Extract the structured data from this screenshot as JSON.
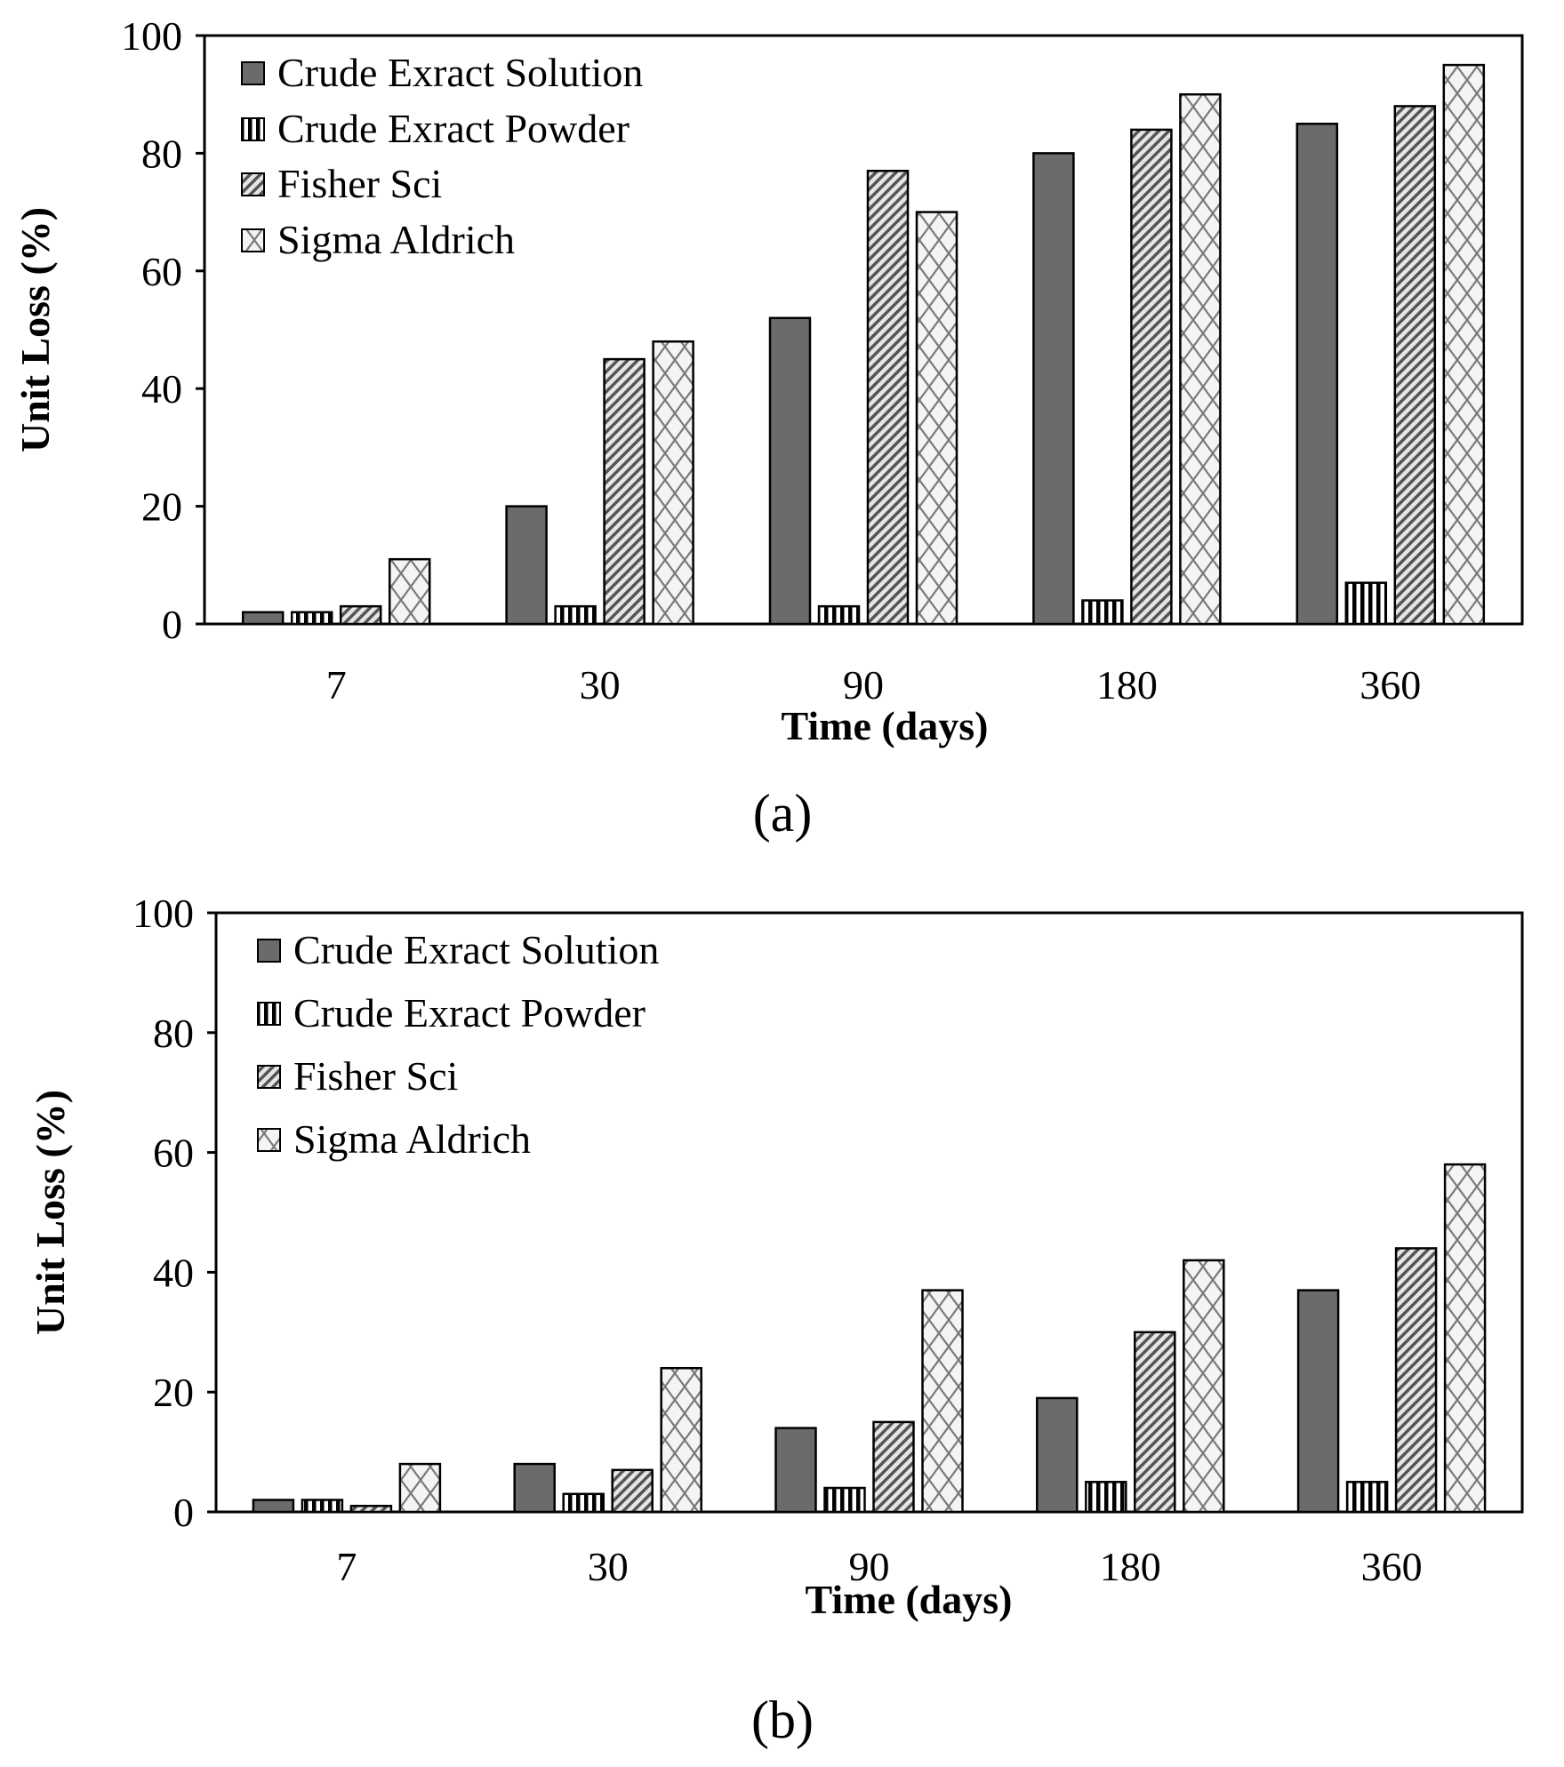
{
  "chart_data": [
    {
      "type": "bar",
      "panel_label": "(a)",
      "categories": [
        "7",
        "30",
        "90",
        "180",
        "360"
      ],
      "series": [
        {
          "name": "Crude Exract Solution",
          "values": [
            2,
            20,
            52,
            80,
            85
          ]
        },
        {
          "name": "Crude Exract Powder",
          "values": [
            2,
            3,
            3,
            4,
            7
          ]
        },
        {
          "name": "Fisher Sci",
          "values": [
            3,
            45,
            77,
            84,
            88
          ]
        },
        {
          "name": "Sigma Aldrich",
          "values": [
            11,
            48,
            70,
            90,
            95
          ]
        }
      ],
      "xlabel": "Time (days)",
      "ylabel": "Unit Loss (%)",
      "ylim": [
        0,
        100
      ],
      "yticks": [
        "0",
        "20",
        "40",
        "60",
        "80",
        "100"
      ],
      "legend_position": "top-left"
    },
    {
      "type": "bar",
      "panel_label": "(b)",
      "categories": [
        "7",
        "30",
        "90",
        "180",
        "360"
      ],
      "series": [
        {
          "name": "Crude Exract Solution",
          "values": [
            2,
            8,
            14,
            19,
            37
          ]
        },
        {
          "name": "Crude Exract Powder",
          "values": [
            2,
            3,
            4,
            5,
            5
          ]
        },
        {
          "name": "Fisher Sci",
          "values": [
            1,
            7,
            15,
            30,
            44
          ]
        },
        {
          "name": "Sigma Aldrich",
          "values": [
            8,
            24,
            37,
            42,
            58
          ]
        }
      ],
      "xlabel": "Time (days)",
      "ylabel": "Unit Loss (%)",
      "ylim": [
        0,
        100
      ],
      "yticks": [
        "0",
        "20",
        "40",
        "60",
        "80",
        "100"
      ],
      "legend_position": "top-left"
    }
  ],
  "series_styles": [
    {
      "pattern": "solid-gray",
      "color": "#6b6b6b"
    },
    {
      "pattern": "vertical-stripes",
      "color": "#000000"
    },
    {
      "pattern": "diagonal-hatch",
      "color": "#555555"
    },
    {
      "pattern": "diamond-crosshatch",
      "color": "#777777"
    }
  ]
}
